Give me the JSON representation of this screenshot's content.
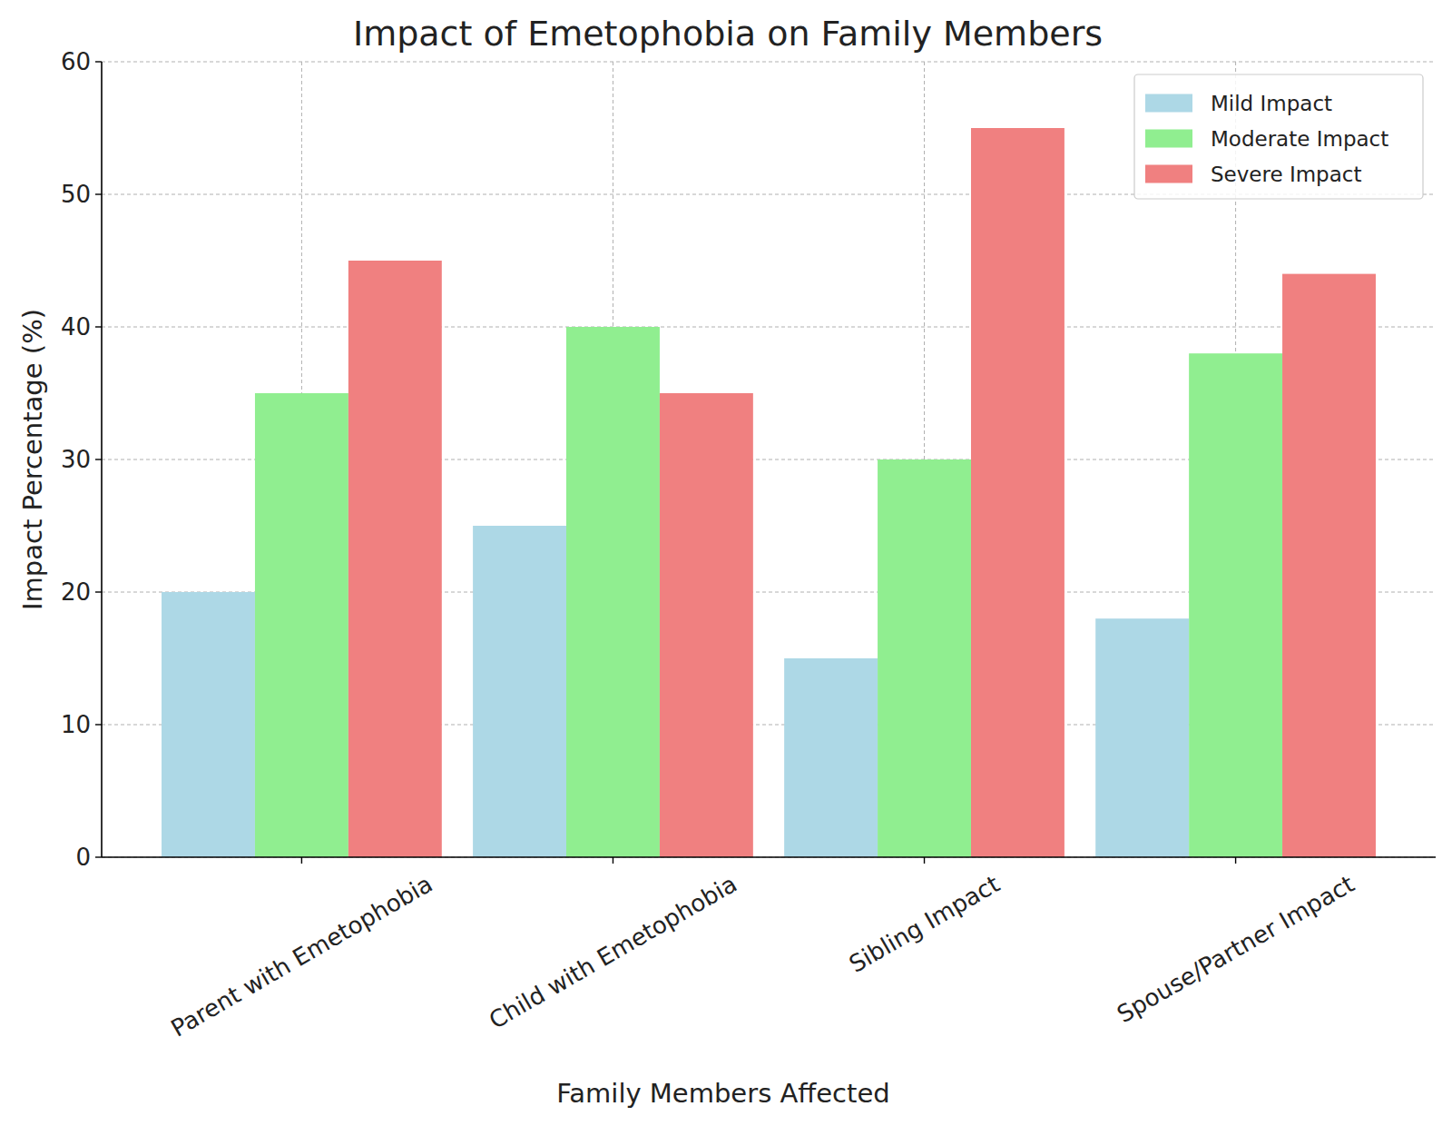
{
  "chart_data": {
    "type": "bar",
    "title": "Impact of Emetophobia on Family Members",
    "x_label": "Family Members Affected",
    "y_label": "Impact Percentage (%)",
    "categories": [
      "Parent with Emetophobia",
      "Child with Emetophobia",
      "Sibling Impact",
      "Spouse/Partner Impact"
    ],
    "series": [
      {
        "name": "Mild Impact",
        "color": "#add8e6",
        "values": [
          20,
          25,
          15,
          18
        ]
      },
      {
        "name": "Moderate Impact",
        "color": "#90ee90",
        "values": [
          35,
          40,
          30,
          38
        ]
      },
      {
        "name": "Severe Impact",
        "color": "#f08080",
        "values": [
          45,
          35,
          55,
          44
        ]
      }
    ],
    "ylim": [
      0,
      60
    ],
    "yticks": [
      0,
      10,
      20,
      30,
      40,
      50,
      60
    ],
    "grid": true,
    "legend": "upper right"
  }
}
